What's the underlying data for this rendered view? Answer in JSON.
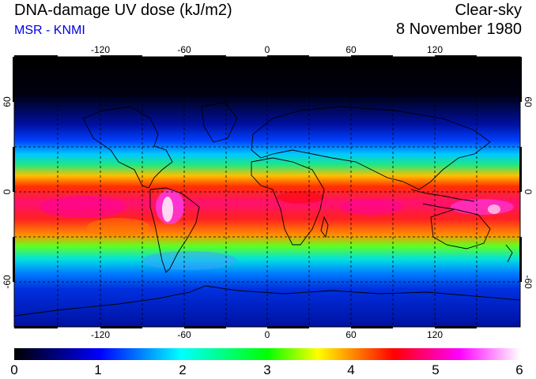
{
  "header": {
    "title": "DNA-damage UV dose (kJ/m2)",
    "source": "MSR - KNMI",
    "condition": "Clear-sky",
    "date": "8 November 1980"
  },
  "map": {
    "lon_ticks": [
      "-120",
      "-60",
      "0",
      "60",
      "120"
    ],
    "lat_ticks": [
      "60",
      "0",
      "-60"
    ],
    "colors": {
      "stop0": "#000000",
      "stop1": "#0000ff",
      "stop2": "#00ffff",
      "stop3": "#00ff00",
      "stop4": "#ffff00",
      "stop5": "#ff0000",
      "stop6": "#ff00ff",
      "stop7": "#ffffff"
    }
  },
  "colorbar": {
    "labels": [
      "0",
      "1",
      "2",
      "3",
      "4",
      "5",
      "6"
    ],
    "range": [
      0,
      6
    ]
  }
}
